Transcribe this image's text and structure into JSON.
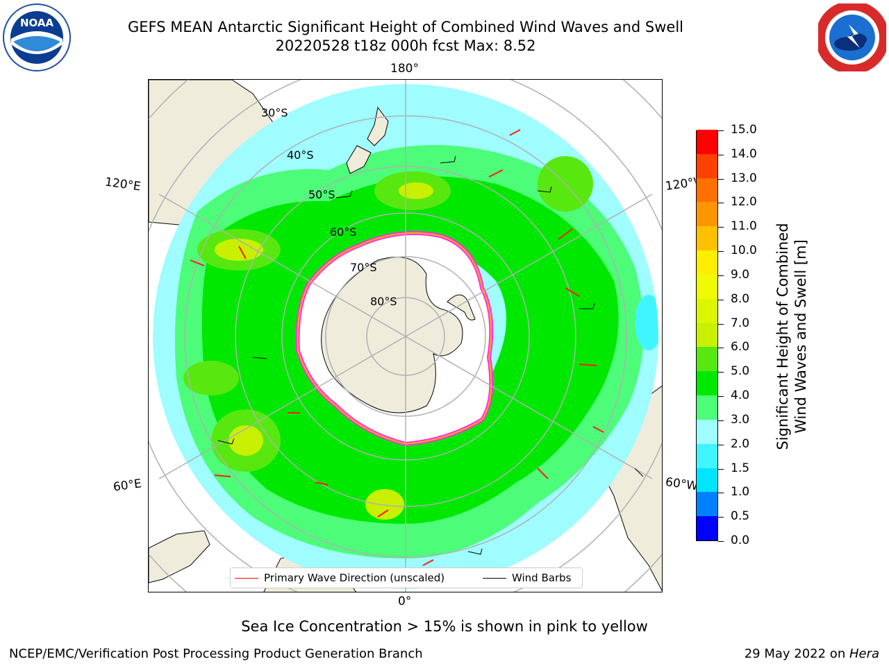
{
  "title": {
    "line1": "GEFS MEAN Antarctic Significant Height of Combined Wind Waves and Swell",
    "line2": "20220528 t18z 000h fcst   Max: 8.52"
  },
  "logos": {
    "left": {
      "text": "NOAA",
      "icon": "noaa-logo-icon"
    },
    "right": {
      "icon": "national-weather-service-logo-icon"
    }
  },
  "map": {
    "longitude_labels": {
      "top": "180°",
      "bottom": "0°",
      "upper_left": "120°E",
      "upper_right": "120°W",
      "lower_left": "60°E",
      "lower_right": "60°W"
    },
    "latitude_labels": [
      "30°S",
      "40°S",
      "50°S",
      "60°S",
      "70°S",
      "80°S"
    ],
    "legend": {
      "wave_direction": "Primary Wave Direction (unscaled)",
      "wind_barbs": "Wind Barbs"
    }
  },
  "colorbar": {
    "label_line1": "Significant Height of Combined",
    "label_line2": "Wind Waves and Swell [m]",
    "ticks": [
      "0.0",
      "0.5",
      "1.0",
      "1.5",
      "2.0",
      "3.0",
      "4.0",
      "5.0",
      "6.0",
      "7.0",
      "8.0",
      "9.0",
      "10.0",
      "11.0",
      "12.0",
      "13.0",
      "14.0",
      "15.0"
    ],
    "colors": [
      "#0000ff",
      "#0080ff",
      "#00e5ff",
      "#40f5ff",
      "#9ffcff",
      "#4dfc78",
      "#00e800",
      "#58e810",
      "#c8f000",
      "#dcf500",
      "#f0fa00",
      "#ffee00",
      "#ffc000",
      "#ff9500",
      "#ff7000",
      "#ff4000",
      "#ff0000"
    ]
  },
  "note": "Sea Ice Concentration > 15% is shown in pink to yellow",
  "footer": {
    "left": "NCEP/EMC/Verification Post Processing Product Generation Branch",
    "right_date": "29 May 2022 on ",
    "right_host": "Hera"
  }
}
